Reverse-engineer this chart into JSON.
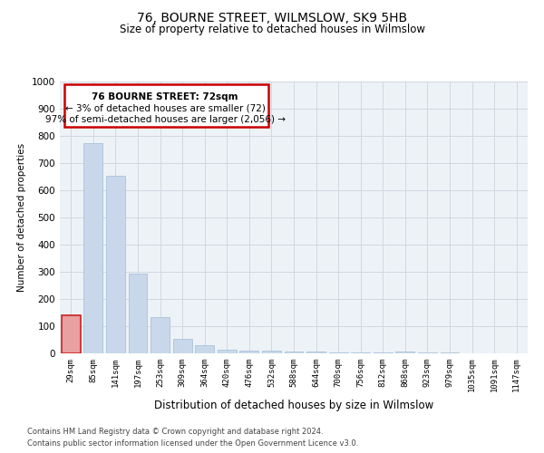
{
  "title": "76, BOURNE STREET, WILMSLOW, SK9 5HB",
  "subtitle": "Size of property relative to detached houses in Wilmslow",
  "xlabel": "Distribution of detached houses by size in Wilmslow",
  "ylabel": "Number of detached properties",
  "footnote1": "Contains HM Land Registry data © Crown copyright and database right 2024.",
  "footnote2": "Contains public sector information licensed under the Open Government Licence v3.0.",
  "annotation_title": "76 BOURNE STREET: 72sqm",
  "annotation_line2": "← 3% of detached houses are smaller (72)",
  "annotation_line3": "97% of semi-detached houses are larger (2,056) →",
  "bar_color": "#c8d8ea",
  "bar_edge_color": "#a0bcd4",
  "highlight_bar_color": "#e8a0a0",
  "highlight_bar_edge": "#cc2222",
  "annotation_box_edge": "#cc0000",
  "categories": [
    "29sqm",
    "85sqm",
    "141sqm",
    "197sqm",
    "253sqm",
    "309sqm",
    "364sqm",
    "420sqm",
    "476sqm",
    "532sqm",
    "588sqm",
    "644sqm",
    "700sqm",
    "756sqm",
    "812sqm",
    "868sqm",
    "923sqm",
    "979sqm",
    "1035sqm",
    "1091sqm",
    "1147sqm"
  ],
  "values": [
    140,
    775,
    655,
    295,
    135,
    55,
    30,
    15,
    10,
    10,
    8,
    8,
    5,
    5,
    5,
    8,
    3,
    2,
    1,
    1,
    1
  ],
  "highlight_index": 0,
  "ylim": [
    0,
    1000
  ],
  "yticks": [
    0,
    100,
    200,
    300,
    400,
    500,
    600,
    700,
    800,
    900,
    1000
  ],
  "grid_color": "#d0d8e0",
  "bg_color": "#edf2f7",
  "title_fontsize": 10,
  "subtitle_fontsize": 8.5
}
